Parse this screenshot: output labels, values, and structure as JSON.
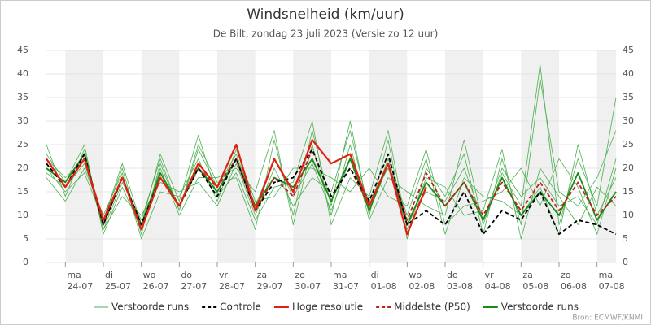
{
  "chart_data": {
    "type": "line",
    "title": "Windsnelheid (km/uur)",
    "subtitle": "De Bilt, zondag 23 juli 2023 (Versie zo 12 uur)",
    "source": "Bron: ECMWF/KNMI",
    "categories": [
      null,
      "24-07",
      null,
      "25-07",
      null,
      "26-07",
      null,
      "27-07",
      null,
      "28-07",
      null,
      "29-07",
      null,
      "30-07",
      null,
      "31-07",
      null,
      "01-08",
      null,
      "02-08",
      null,
      "03-08",
      null,
      "04-08",
      null,
      "05-08",
      null,
      "06-08",
      null,
      "07-08",
      null
    ],
    "weekdays": [
      null,
      "ma",
      null,
      "di",
      null,
      "wo",
      null,
      "do",
      null,
      "vr",
      null,
      "za",
      null,
      "zo",
      null,
      "ma",
      null,
      "di",
      null,
      "wo",
      null,
      "do",
      null,
      "vr",
      null,
      "za",
      null,
      "zo",
      null,
      "ma",
      null
    ],
    "ylim": [
      0,
      45
    ],
    "yticks": [
      0,
      5,
      10,
      15,
      20,
      25,
      30,
      35,
      40,
      45
    ],
    "grid": true,
    "ensemble": {
      "name": "Verstoorde runs",
      "color": "#4caf50",
      "members": [
        [
          25,
          14,
          24,
          7,
          17,
          9,
          22,
          11,
          25,
          17,
          18,
          7,
          26,
          10,
          28,
          12,
          30,
          10,
          26,
          5,
          20,
          14,
          23,
          6,
          22,
          8,
          39,
          15,
          12,
          18,
          28
        ],
        [
          18,
          13,
          20,
          10,
          19,
          5,
          15,
          14,
          22,
          13,
          24,
          13,
          14,
          20,
          20,
          18,
          15,
          20,
          14,
          12,
          24,
          8,
          12,
          13,
          15,
          20,
          12,
          22,
          16,
          6,
          20
        ],
        [
          23,
          17,
          25,
          6,
          16,
          7,
          20,
          10,
          18,
          18,
          20,
          15,
          28,
          8,
          25,
          10,
          25,
          9,
          18,
          15,
          12,
          10,
          26,
          8,
          19,
          12,
          42,
          8,
          22,
          12,
          35
        ],
        [
          20,
          15,
          19,
          9,
          21,
          8,
          23,
          13,
          27,
          14,
          19,
          9,
          16,
          17,
          30,
          8,
          18,
          14,
          28,
          7,
          18,
          16,
          10,
          11,
          24,
          5,
          20,
          14,
          8,
          16,
          12
        ],
        [
          22,
          18,
          22,
          7,
          14,
          10,
          17,
          15,
          17,
          12,
          21,
          10,
          20,
          12,
          18,
          15,
          28,
          11,
          22,
          10,
          22,
          6,
          18,
          14,
          13,
          10,
          16,
          6,
          25,
          10,
          18
        ],
        [
          19,
          16,
          21,
          9,
          20,
          6,
          21,
          11,
          24,
          16,
          23,
          12,
          22,
          14,
          21,
          11,
          22,
          13,
          20,
          9,
          15,
          13,
          20,
          9,
          20,
          14,
          18,
          12,
          14,
          8,
          22
        ]
      ]
    },
    "series": [
      {
        "name": "Controle",
        "color": "#000000",
        "dash": true,
        "values": [
          21,
          16,
          23,
          8,
          18,
          8,
          18,
          12,
          20,
          14,
          22,
          11,
          17,
          18,
          24,
          14,
          20,
          13,
          23,
          8,
          11,
          8,
          15,
          6,
          11,
          9,
          15,
          6,
          9,
          8,
          6
        ]
      },
      {
        "name": "Hoge resolutie",
        "color": "#e02010",
        "dash": false,
        "values": [
          22,
          16,
          22,
          9,
          18,
          7,
          18,
          12,
          21,
          16,
          25,
          11,
          22,
          15,
          26,
          21,
          23,
          12,
          21,
          6,
          16,
          null,
          null,
          null,
          null,
          null,
          null,
          null,
          null,
          null,
          null
        ]
      },
      {
        "name": "Middelste (P50)",
        "color": "#c02020",
        "dash": true,
        "values": [
          21,
          16,
          22,
          8,
          18,
          7,
          18,
          12,
          20,
          16,
          22,
          11,
          18,
          14,
          24,
          14,
          20,
          12,
          21,
          9,
          19,
          12,
          17,
          10,
          17,
          11,
          17,
          11,
          17,
          10,
          14
        ]
      },
      {
        "name": "Verstoorde runs",
        "color": "#1a8a1a",
        "dash": false,
        "values": [
          20,
          17,
          23,
          8,
          18,
          8,
          19,
          12,
          20,
          15,
          22,
          12,
          18,
          16,
          22,
          13,
          22,
          11,
          21,
          8,
          17,
          12,
          17,
          9,
          18,
          10,
          15,
          10,
          19,
          9,
          15
        ]
      }
    ]
  }
}
